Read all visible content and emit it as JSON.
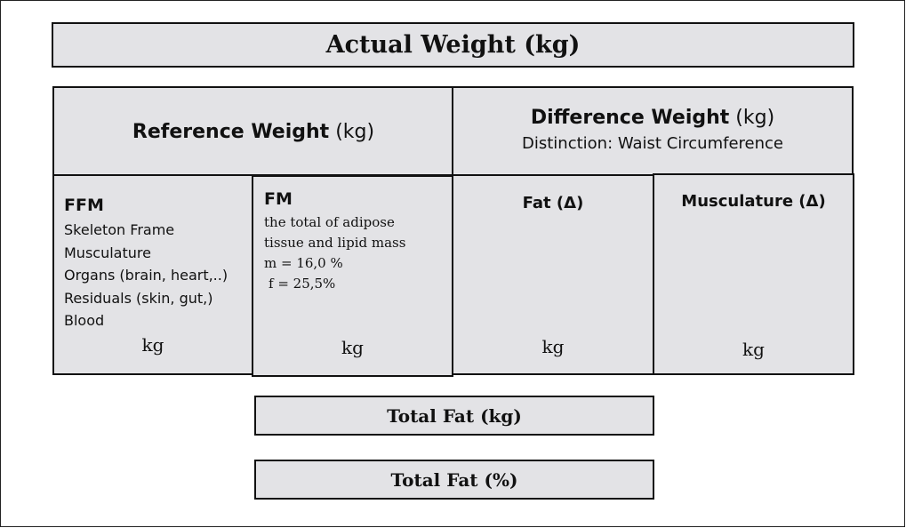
{
  "actual_weight": "Actual Weight (kg)",
  "reference": {
    "title_bold": "Reference Weight",
    "title_unit": " (kg)"
  },
  "difference": {
    "title_bold": "Difference Weight",
    "title_unit": " (kg)",
    "subtitle": "Distinction: Waist Circumference"
  },
  "ffm": {
    "heading": "FFM",
    "items": [
      "Skeleton Frame",
      "Musculature",
      "Organs (brain, heart,..)",
      "Residuals (skin, gut,)",
      "Blood"
    ],
    "unit": "kg"
  },
  "fm": {
    "heading": "FM",
    "lines": [
      "the total of adipose",
      "tissue and lipid mass",
      "m = 16,0 %",
      " f  = 25,5%"
    ],
    "unit": "kg"
  },
  "fat_delta": {
    "heading": "Fat (Δ)",
    "unit": "kg"
  },
  "musculature_delta": {
    "heading": "Musculature (Δ)",
    "unit": "kg"
  },
  "total_fat_kg": "Total Fat (kg)",
  "total_fat_pct": "Total Fat (%)",
  "colors": {
    "box_fill": "#e3e3e6",
    "border": "#111111"
  }
}
